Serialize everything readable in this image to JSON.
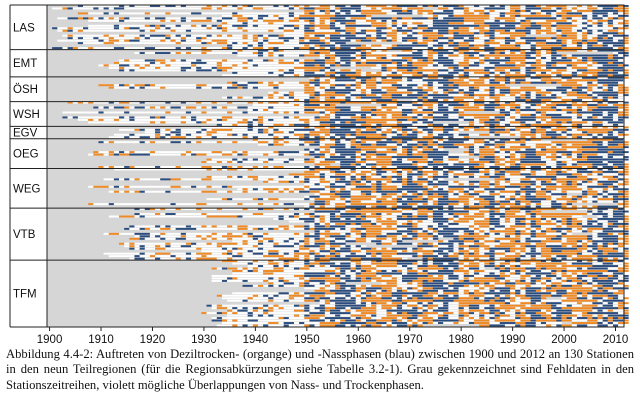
{
  "chart_data": {
    "type": "heatmap",
    "title": "",
    "xlabel": "",
    "ylabel": "",
    "x_range": [
      1900,
      2012
    ],
    "x_ticks": [
      "1900",
      "1910",
      "1920",
      "1930",
      "1940",
      "1950",
      "1960",
      "1970",
      "1980",
      "1990",
      "2000",
      "2010"
    ],
    "stations_total": 130,
    "regions": [
      {
        "label": "LAS",
        "stations": 18
      },
      {
        "label": "EMT",
        "stations": 11
      },
      {
        "label": "ÖSH",
        "stations": 10
      },
      {
        "label": "WSH",
        "stations": 10
      },
      {
        "label": "EGV",
        "stations": 5
      },
      {
        "label": "OEG",
        "stations": 12
      },
      {
        "label": "WEG",
        "stations": 16
      },
      {
        "label": "VTB",
        "stations": 21
      },
      {
        "label": "TFM",
        "stations": 27
      }
    ],
    "categories": [
      "dry",
      "wet",
      "missing",
      "overlap"
    ],
    "colors": {
      "dry": "#f08a24",
      "wet": "#2b4d7e",
      "missing": "#d6d6d6",
      "normal": "#ffffff",
      "overlap": "#7a4f9e"
    }
  },
  "caption": "Abbildung 4.4-2: Auftreten von Deziltrocken- (organge) und -Nassphasen (blau) zwischen 1900 und 2012 an 130 Stationen in den neun Teilregionen (für die Regionsabkürzungen siehe Tabelle 3.2-1). Grau gekennzeichnet sind Fehldaten in den Stationszeitreihen, violett mögliche Überlappungen von Nass- und Trockenphasen."
}
